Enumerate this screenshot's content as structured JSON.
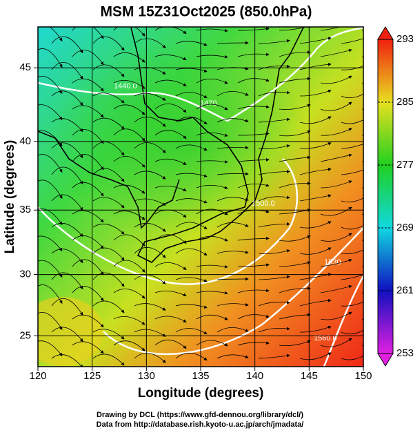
{
  "title": "MSM 15Z31Oct2025 (850.0hPa)",
  "map": {
    "projection": "mercator",
    "x_axis": {
      "label": "Longitude (degrees)",
      "lim": [
        120,
        150
      ],
      "ticks": [
        120,
        125,
        130,
        135,
        140,
        145,
        150
      ]
    },
    "y_axis": {
      "label": "Latitude  (degrees)",
      "lim": [
        22.4,
        47.6
      ],
      "ticks": [
        25,
        30,
        35,
        40,
        45
      ]
    },
    "grid": true,
    "contour_labels": [
      "1440.0",
      "1470",
      "1500.0",
      "1530",
      "1560.0"
    ]
  },
  "colorbar": {
    "lim": [
      253,
      293
    ],
    "ticks": [
      253,
      261,
      269,
      277,
      285,
      293
    ],
    "colors": [
      "#e020e0",
      "#1010c0",
      "#10d8e0",
      "#20d020",
      "#e8e020",
      "#f02010"
    ]
  },
  "footer": [
    "Drawing by DCL (https://www.gfd-dennou.org/library/dcl/)",
    "Data from http://database.rish.kyoto-u.ac.jp/arch/jmadata/"
  ]
}
